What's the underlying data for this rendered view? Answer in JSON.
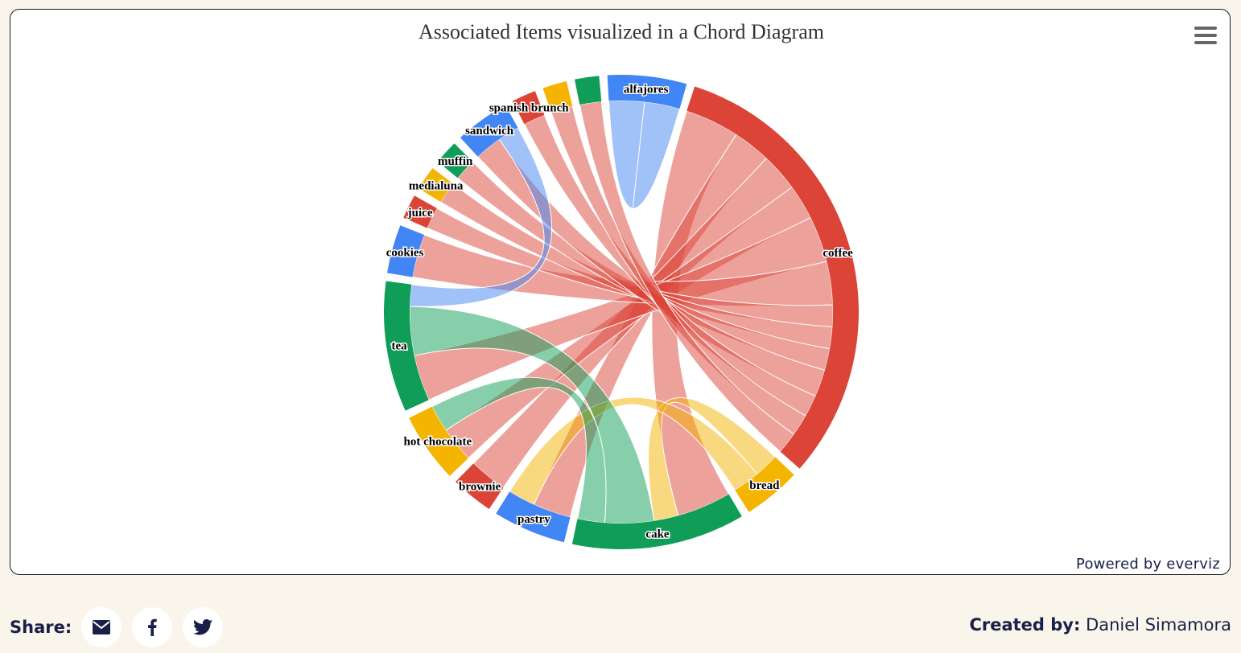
{
  "chart": {
    "title": "Associated Items visualized in a Chord Diagram",
    "powered_by": "Powered by  everviz",
    "menu_icon": "hamburger-menu-icon"
  },
  "chart_data": {
    "type": "chord",
    "title": "Associated Items visualized in a Chord Diagram",
    "nodes": [
      {
        "name": "coffee",
        "color": "#db4437"
      },
      {
        "name": "bread",
        "color": "#f4b400"
      },
      {
        "name": "cake",
        "color": "#0f9d58"
      },
      {
        "name": "pastry",
        "color": "#4285f4"
      },
      {
        "name": "brownie",
        "color": "#db4437"
      },
      {
        "name": "hot chocolate",
        "color": "#f4b400"
      },
      {
        "name": "tea",
        "color": "#0f9d58"
      },
      {
        "name": "cookies",
        "color": "#4285f4"
      },
      {
        "name": "juice",
        "color": "#db4437"
      },
      {
        "name": "medialuna",
        "color": "#f4b400"
      },
      {
        "name": "muffin",
        "color": "#0f9d58"
      },
      {
        "name": "sandwich",
        "color": "#4285f4"
      },
      {
        "name": "spanish brunch",
        "color": "#db4437"
      },
      {
        "name": "",
        "color": "#f4b400"
      },
      {
        "name": "",
        "color": "#0f9d58"
      },
      {
        "name": "alfajores",
        "color": "#4285f4"
      }
    ],
    "links": [
      {
        "from": "coffee",
        "to": "cake",
        "value": 2
      },
      {
        "from": "coffee",
        "to": "pastry",
        "value": 1.4
      },
      {
        "from": "coffee",
        "to": "brownie",
        "value": 1.4
      },
      {
        "from": "coffee",
        "to": "hot chocolate",
        "value": 1.3
      },
      {
        "from": "coffee",
        "to": "tea",
        "value": 1.7
      },
      {
        "from": "coffee",
        "to": "cookies",
        "value": 1.6
      },
      {
        "from": "coffee",
        "to": "juice",
        "value": 0.8
      },
      {
        "from": "coffee",
        "to": "medialuna",
        "value": 0.8
      },
      {
        "from": "coffee",
        "to": "muffin",
        "value": 0.8
      },
      {
        "from": "coffee",
        "to": "sandwich",
        "value": 1
      },
      {
        "from": "coffee",
        "to": "spanish brunch",
        "value": 0.8
      },
      {
        "from": "coffee",
        "to": "",
        "value": 0.8
      },
      {
        "from": "coffee",
        "to": "",
        "value": 0.8
      },
      {
        "from": "bread",
        "to": "cake",
        "value": 0.9
      },
      {
        "from": "bread",
        "to": "pastry",
        "value": 1
      },
      {
        "from": "cake",
        "to": "tea",
        "value": 1.8
      },
      {
        "from": "cake",
        "to": "hot chocolate",
        "value": 1
      },
      {
        "from": "sandwich",
        "to": "tea",
        "value": 0.8
      },
      {
        "from": "alfajores",
        "to": "alfajores",
        "value": 1.3
      }
    ]
  },
  "footer": {
    "share_label": "Share:",
    "share_buttons": [
      {
        "icon": "email-icon"
      },
      {
        "icon": "facebook-icon"
      },
      {
        "icon": "twitter-icon"
      }
    ],
    "created_label": "Created by:",
    "author": "Daniel Simamora"
  }
}
